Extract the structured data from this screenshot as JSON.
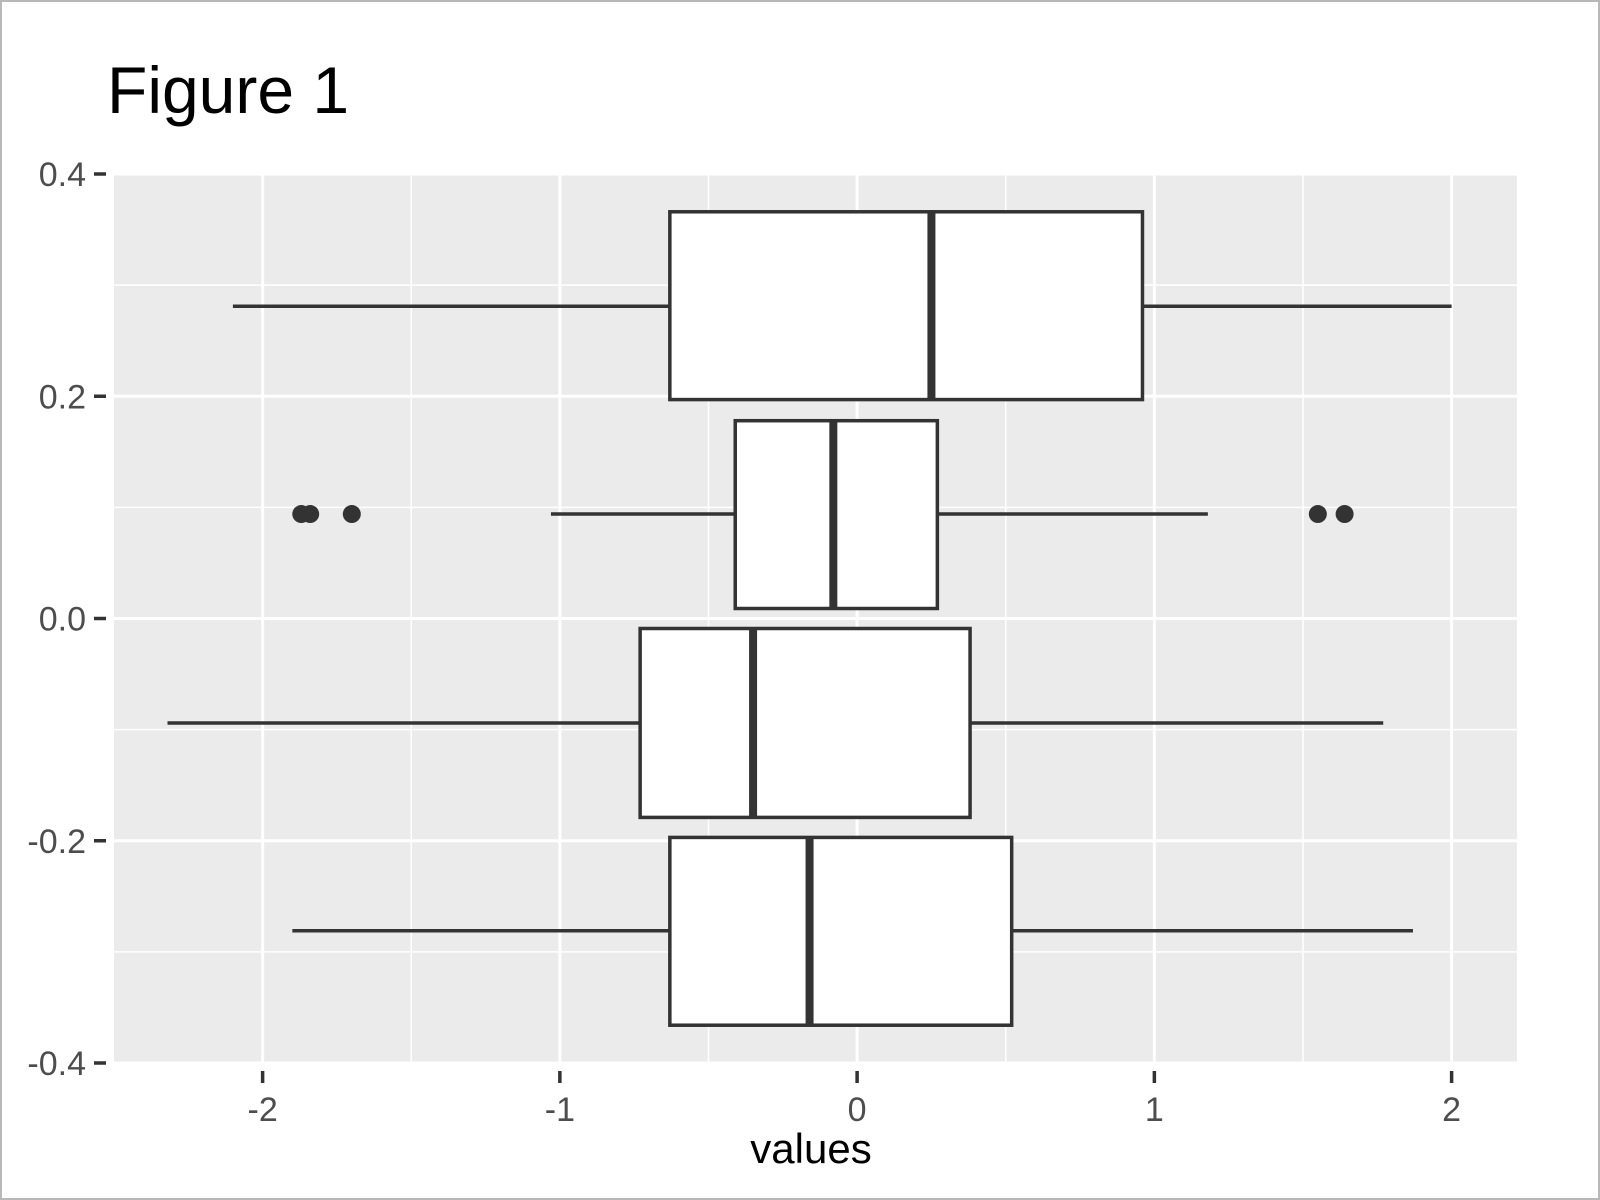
{
  "chart_data": {
    "type": "boxplot",
    "orientation": "horizontal",
    "title": "Figure 1",
    "xlabel": "values",
    "ylabel": "",
    "xlim": [
      -2.5,
      2.22
    ],
    "ylim": [
      -0.4,
      0.4
    ],
    "x_ticks": [
      -2,
      -1,
      0,
      1,
      2
    ],
    "x_tick_labels": [
      "-2",
      "-1",
      "0",
      "1",
      "2"
    ],
    "y_ticks": [
      -0.4,
      -0.2,
      0.0,
      0.2,
      0.4
    ],
    "y_tick_labels": [
      "-0.4",
      "-0.2",
      "0.0",
      "0.2",
      "0.4"
    ],
    "grid": true,
    "panel_background": "#ebebeb",
    "box_fill": "#ffffff",
    "box_stroke": "#333333",
    "boxes": [
      {
        "y_center": 0.281,
        "y_low": 0.197,
        "y_high": 0.366,
        "whisker_low": -2.1,
        "q1": -0.63,
        "median": 0.25,
        "q3": 0.96,
        "whisker_high": 2.0,
        "outliers": []
      },
      {
        "y_center": 0.094,
        "y_low": 0.009,
        "y_high": 0.178,
        "whisker_low": -1.03,
        "q1": -0.41,
        "median": -0.08,
        "q3": 0.27,
        "whisker_high": 1.18,
        "outliers": [
          -1.87,
          -1.84,
          -1.7,
          1.55,
          1.64
        ]
      },
      {
        "y_center": -0.094,
        "y_low": -0.179,
        "y_high": -0.009,
        "whisker_low": -2.32,
        "q1": -0.73,
        "median": -0.35,
        "q3": 0.38,
        "whisker_high": 1.77,
        "outliers": []
      },
      {
        "y_center": -0.281,
        "y_low": -0.366,
        "y_high": -0.197,
        "whisker_low": -1.9,
        "q1": -0.63,
        "median": -0.16,
        "q3": 0.52,
        "whisker_high": 1.87,
        "outliers": []
      }
    ]
  }
}
